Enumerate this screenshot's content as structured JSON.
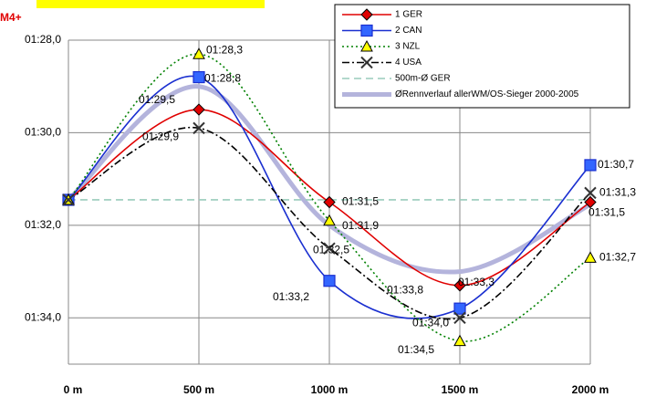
{
  "chart_data": {
    "type": "line",
    "title": "M4+",
    "categories": [
      "0 m",
      "500 m",
      "1000 m",
      "1500 m",
      "2000 m"
    ],
    "ylim": [
      95,
      88
    ],
    "yticks": [
      {
        "value": 88,
        "label": "01:28,0"
      },
      {
        "value": 90,
        "label": "01:30,0"
      },
      {
        "value": 92,
        "label": "01:32,0"
      },
      {
        "value": 94,
        "label": "01:34,0"
      }
    ],
    "grid": true,
    "legend": "top-right",
    "series": [
      {
        "name": "1 GER",
        "color": "#e00000",
        "marker": "diamond",
        "dash": "",
        "values": [
          91.45,
          89.5,
          91.5,
          93.3,
          91.5
        ],
        "value_labels": [
          null,
          "01:29,5",
          "01:31,5",
          "01:33,3",
          "01:31,5"
        ]
      },
      {
        "name": "2 CAN",
        "color": "#1a2fd0",
        "marker": "square",
        "dash": "",
        "values": [
          91.45,
          88.8,
          93.2,
          93.8,
          90.7
        ],
        "value_labels": [
          null,
          "01:28,8",
          "01:33,2",
          "01:33,8",
          "01:30,7"
        ]
      },
      {
        "name": "3 NZL",
        "color": "#008000",
        "marker": "triangle",
        "dash": "2,3",
        "values": [
          91.45,
          88.3,
          91.9,
          94.5,
          92.7
        ],
        "value_labels": [
          null,
          "01:28,3",
          "01:31,9",
          "01:34,5",
          "01:32,7"
        ]
      },
      {
        "name": "4 USA",
        "color": "#000000",
        "marker": "x",
        "dash": "8,3,2,3",
        "values": [
          91.45,
          89.9,
          92.5,
          94.0,
          91.3
        ],
        "value_labels": [
          null,
          "01:29,9",
          "01:32,5",
          "01:34,0",
          "01:31,3"
        ]
      },
      {
        "name": "500m-Ø GER",
        "color": "#99ccbb",
        "marker": "none",
        "dash": "8,5",
        "values": [
          91.45,
          91.45,
          91.45,
          91.45,
          91.45
        ]
      },
      {
        "name": "ØRennverlauf allerWM/OS-Sieger 2000-2005",
        "color": "#b4b4dc",
        "marker": "none",
        "dash": "",
        "width": 5,
        "values": [
          91.45,
          89.0,
          92.0,
          93.0,
          91.55
        ]
      }
    ]
  }
}
